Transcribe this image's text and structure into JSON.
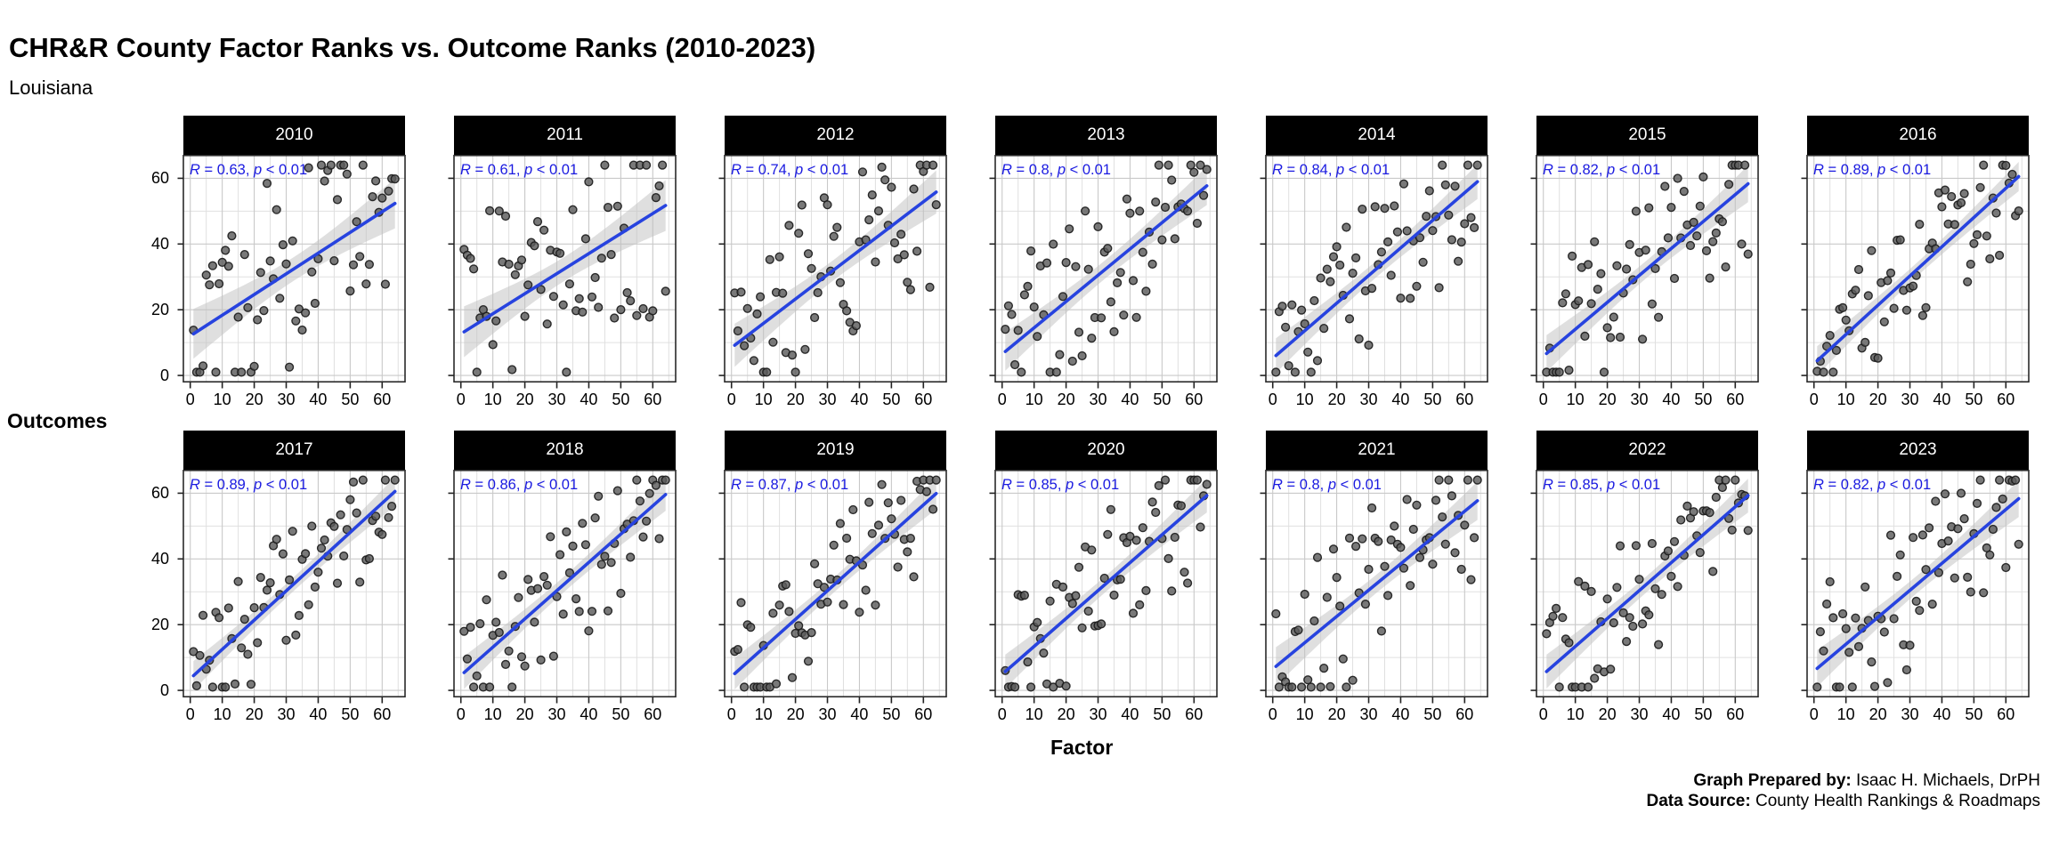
{
  "title": "CHR&R County Factor Ranks vs. Outcome Ranks (2010-2023)",
  "subtitle": "Louisiana",
  "axes": {
    "x_label": "Factor",
    "y_label": "Outcomes",
    "x_ticks": [
      0,
      10,
      20,
      30,
      40,
      50,
      60
    ],
    "y_ticks": [
      0,
      20,
      40,
      60
    ],
    "x_minor": [
      5,
      15,
      25,
      35,
      45,
      55,
      65
    ],
    "y_minor": [
      10,
      30,
      50
    ],
    "data_range": [
      1,
      64
    ],
    "expanded_range": [
      -2.15,
      67.15
    ]
  },
  "footer": {
    "prepared_label": "Graph Prepared by:",
    "prepared_value": " Isaac H. Michaels, DrPH",
    "source_label": "Data Source:",
    "source_value": " County Health Rankings & Roadmaps"
  },
  "colors": {
    "strip_bg": "#000000",
    "strip_text": "#ffffff",
    "panel_bg": "#ffffff",
    "panel_border": "#2a2a2a",
    "grid_major": "#c9c9c9",
    "grid_minor": "#e0e0e0",
    "point_fill": "#5c5c5c",
    "point_stroke": "#1a1a1a",
    "trend_line": "#2743DF",
    "conf_band": "#bfbfbf",
    "stat_text": "#1a1ae0",
    "axis_text": "#000000"
  },
  "chart_data": {
    "type": "scatter",
    "title": "CHR&R County Factor Ranks vs. Outcome Ranks (2010-2023)",
    "subtitle": "Louisiana",
    "xlabel": "Factor",
    "ylabel": "Outcomes",
    "xlim": [
      -2.15,
      67.15
    ],
    "ylim": [
      -2.15,
      67.15
    ],
    "grid": true,
    "n_points_per_facet": 64,
    "facet_layout": {
      "rows": 2,
      "cols": 7
    },
    "trend": "linear fit (slope = R, intercept = 32.5*(1-R)) with confidence band",
    "facets": [
      {
        "year": "2010",
        "r": 0.63,
        "stat_r": "0.63",
        "stat_p": "< 0.01"
      },
      {
        "year": "2011",
        "r": 0.61,
        "stat_r": "0.61",
        "stat_p": "< 0.01"
      },
      {
        "year": "2012",
        "r": 0.74,
        "stat_r": "0.74",
        "stat_p": "< 0.01"
      },
      {
        "year": "2013",
        "r": 0.8,
        "stat_r": "0.8",
        "stat_p": "< 0.01"
      },
      {
        "year": "2014",
        "r": 0.84,
        "stat_r": "0.84",
        "stat_p": "< 0.01"
      },
      {
        "year": "2015",
        "r": 0.82,
        "stat_r": "0.82",
        "stat_p": "< 0.01"
      },
      {
        "year": "2016",
        "r": 0.89,
        "stat_r": "0.89",
        "stat_p": "< 0.01"
      },
      {
        "year": "2017",
        "r": 0.89,
        "stat_r": "0.89",
        "stat_p": "< 0.01"
      },
      {
        "year": "2018",
        "r": 0.86,
        "stat_r": "0.86",
        "stat_p": "< 0.01"
      },
      {
        "year": "2019",
        "r": 0.87,
        "stat_r": "0.87",
        "stat_p": "< 0.01"
      },
      {
        "year": "2020",
        "r": 0.85,
        "stat_r": "0.85",
        "stat_p": "< 0.01"
      },
      {
        "year": "2021",
        "r": 0.8,
        "stat_r": "0.8",
        "stat_p": "< 0.01"
      },
      {
        "year": "2022",
        "r": 0.85,
        "stat_r": "0.85",
        "stat_p": "< 0.01"
      },
      {
        "year": "2023",
        "r": 0.82,
        "stat_r": "0.82",
        "stat_p": "< 0.01"
      }
    ],
    "point_noise_basis": [
      0.52,
      -1.31,
      0.87,
      1.94,
      -0.43,
      -1.78,
      1.12,
      0.08,
      -0.94,
      2.05,
      -0.31,
      0.66,
      -1.52,
      1.33,
      -2.11,
      0.45,
      1.71,
      -1.02,
      0.21,
      -0.58,
      0.95,
      -1.67,
      0.74,
      1.28,
      -0.12,
      -2.02,
      0.38,
      1.55,
      -0.81,
      0.03,
      -1.24,
      1.86,
      0.61,
      -0.47,
      -1.91,
      1.07,
      0.29,
      -0.73,
      1.44,
      -1.13,
      2.18,
      -0.26,
      0.82,
      -1.58,
      0.14,
      1.62,
      -0.92,
      0.49,
      -2.21,
      1.18,
      0.35,
      -0.64,
      1.92,
      -1.41,
      0.07,
      0.98,
      -1.85,
      0.57,
      1.25,
      -0.38,
      -1.09,
      1.49,
      -0.19,
      0.71
    ],
    "point_noise_strides": [
      7,
      11,
      13,
      17,
      19,
      23,
      29,
      31,
      37,
      41,
      43,
      47,
      53,
      59
    ]
  }
}
